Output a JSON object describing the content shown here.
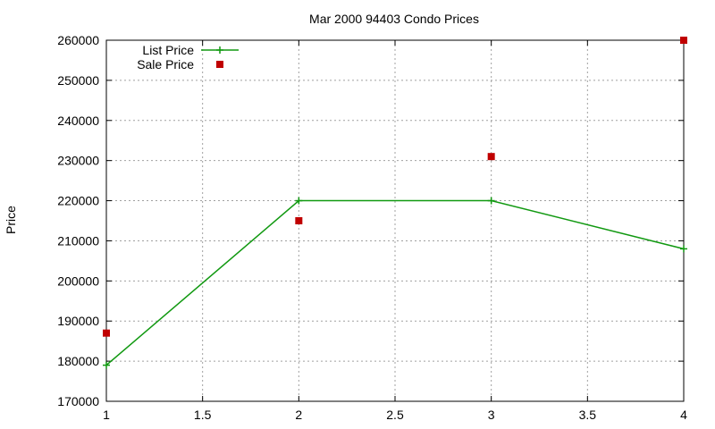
{
  "chart_data": {
    "type": "line",
    "title": "Mar 2000 94403 Condo Prices",
    "xlabel": "",
    "ylabel": "Price",
    "xlim": [
      1,
      4
    ],
    "ylim": [
      170000,
      260000
    ],
    "x_ticks": [
      "1",
      "1.5",
      "2",
      "2.5",
      "3",
      "3.5",
      "4"
    ],
    "y_ticks": [
      "170000",
      "180000",
      "190000",
      "200000",
      "210000",
      "220000",
      "230000",
      "240000",
      "250000",
      "260000"
    ],
    "grid": true,
    "legend_position": "top-left",
    "series": [
      {
        "name": "List Price",
        "style": "linespoints",
        "marker": "plus",
        "color": "#119911",
        "x": [
          1,
          2,
          3,
          4
        ],
        "y": [
          179000,
          220000,
          220000,
          208000
        ]
      },
      {
        "name": "Sale Price",
        "style": "points",
        "marker": "square",
        "color": "#c00000",
        "x": [
          1,
          2,
          3,
          4
        ],
        "y": [
          187000,
          215000,
          231000,
          260000
        ]
      }
    ]
  }
}
